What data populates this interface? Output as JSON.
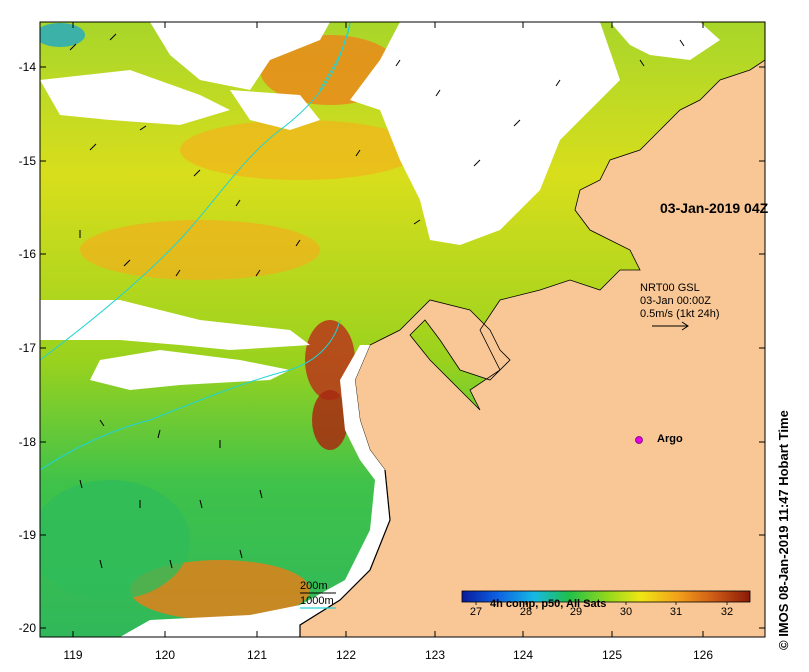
{
  "map": {
    "timestamp": "03-Jan-2019 04Z",
    "current_product": {
      "name": "NRT00 GSL",
      "date": "03-Jan 00:00Z",
      "scale": "0.5m/s (1kt 24h)"
    },
    "argo_label": "Argo",
    "depth_contours": [
      "200m",
      "1000m"
    ],
    "y_ticks": [
      "-14",
      "-15",
      "-16",
      "-17",
      "-18",
      "-19",
      "-20"
    ],
    "x_ticks": [
      "119",
      "120",
      "121",
      "122",
      "123",
      "124",
      "125",
      "126"
    ],
    "colorbar": {
      "title": "4h comp, p50, All Sats",
      "ticks": [
        "27",
        "28",
        "29",
        "30",
        "31",
        "32"
      ]
    },
    "credit": "© IMOS 08-Jan-2019 11:47 Hobart Time"
  },
  "colors": {
    "land": "#f9c795",
    "cloud": "#ffffff",
    "contour": "#22d3d3",
    "argo": "#e000e0",
    "sst_scale": [
      "#0a1a9c",
      "#0d5fe0",
      "#16b8e6",
      "#1fc04a",
      "#8ed81e",
      "#efe614",
      "#f2a01a",
      "#cf5d16",
      "#8a1a08"
    ]
  }
}
